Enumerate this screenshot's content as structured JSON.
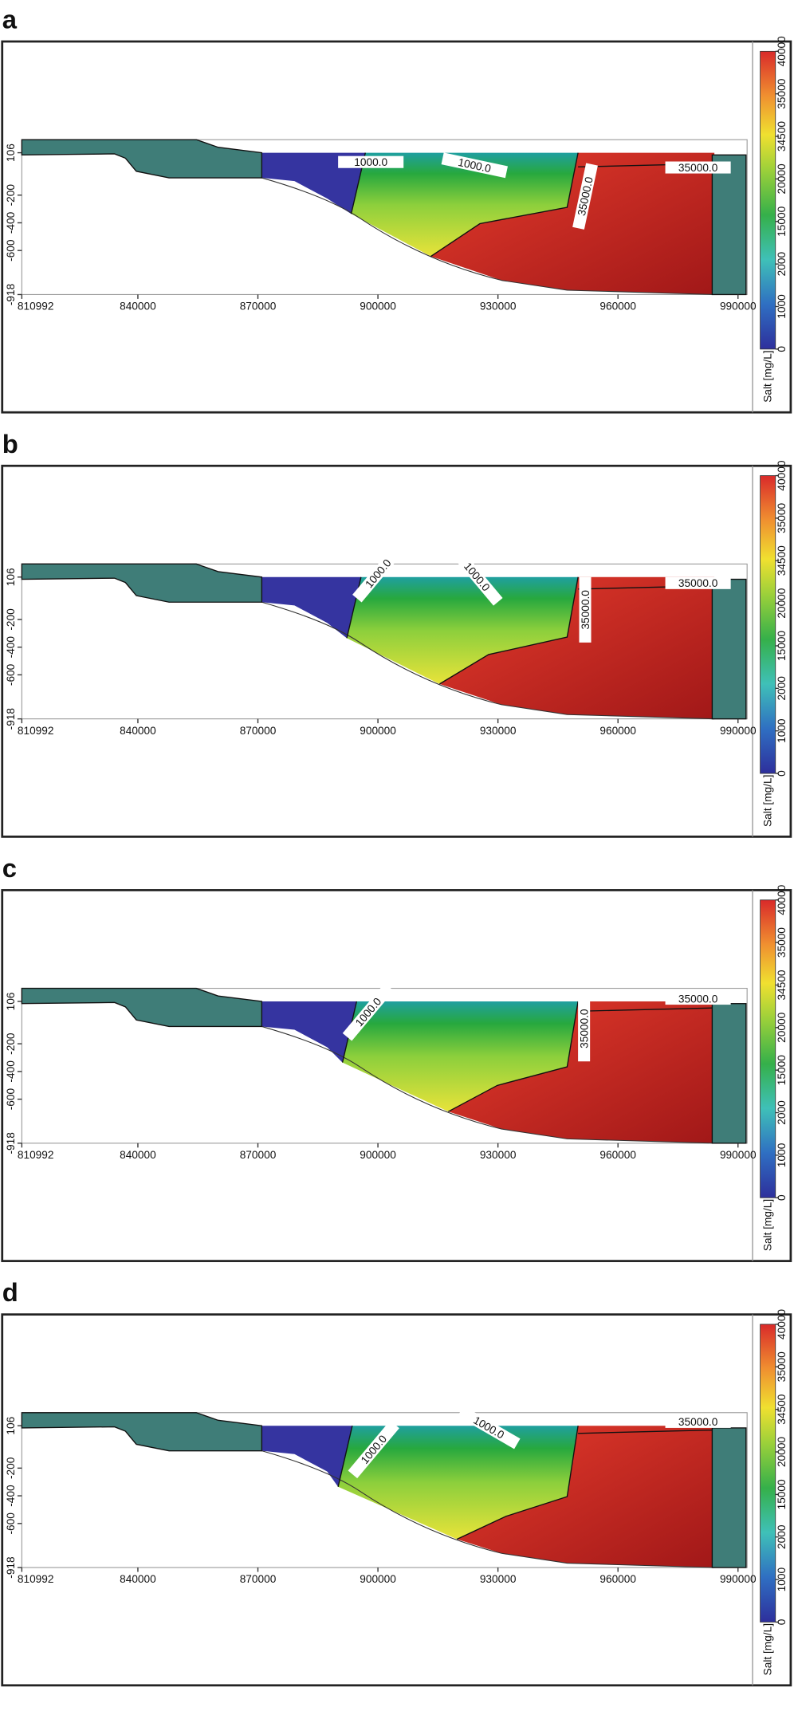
{
  "chart_data": [
    {
      "type": "contour",
      "title": "a",
      "xlim": [
        810992,
        992000
      ],
      "xticks": [
        810992,
        840000,
        870000,
        900000,
        930000,
        960000,
        990000
      ],
      "ylim": [
        -918,
        106
      ],
      "yticks": [
        106,
        -200,
        -400,
        -600,
        -918
      ],
      "colorbar": {
        "label": "Salt [mg/L]",
        "ticks": [
          0,
          1000,
          2000,
          15000,
          20000,
          34500,
          35000,
          40000
        ]
      },
      "annotations": [
        "1000.0",
        "1000.0",
        "35000.0",
        "35000.0"
      ]
    },
    {
      "type": "contour",
      "title": "b",
      "xlim": [
        810992,
        992000
      ],
      "xticks": [
        810992,
        840000,
        870000,
        900000,
        930000,
        960000,
        990000
      ],
      "ylim": [
        -918,
        106
      ],
      "yticks": [
        106,
        -200,
        -400,
        -600,
        -918
      ],
      "colorbar": {
        "label": "Salt [mg/L]",
        "ticks": [
          0,
          1000,
          2000,
          15000,
          20000,
          34500,
          35000,
          40000
        ]
      },
      "annotations": [
        "1000.0",
        "1000.0",
        "35000.0",
        "35000.0"
      ]
    },
    {
      "type": "contour",
      "title": "c",
      "xlim": [
        810992,
        992000
      ],
      "xticks": [
        810992,
        840000,
        870000,
        900000,
        930000,
        960000,
        990000
      ],
      "ylim": [
        -918,
        106
      ],
      "yticks": [
        106,
        -200,
        -400,
        -600,
        -918
      ],
      "colorbar": {
        "label": "Salt [mg/L]",
        "ticks": [
          0,
          1000,
          2000,
          15000,
          20000,
          34500,
          35000,
          40000
        ]
      },
      "annotations": [
        "1000.0",
        "35000.0",
        "35000.0"
      ]
    },
    {
      "type": "contour",
      "title": "d",
      "xlim": [
        810992,
        992000
      ],
      "xticks": [
        810992,
        840000,
        870000,
        900000,
        930000,
        960000,
        990000
      ],
      "ylim": [
        -918,
        106
      ],
      "yticks": [
        106,
        -200,
        -400,
        -600,
        -918
      ],
      "colorbar": {
        "label": "Salt [mg/L]",
        "ticks": [
          0,
          1000,
          2000,
          15000,
          20000,
          34500,
          35000,
          40000
        ]
      },
      "annotations": [
        "1000.0",
        "1000.0",
        "35000.0"
      ]
    }
  ]
}
